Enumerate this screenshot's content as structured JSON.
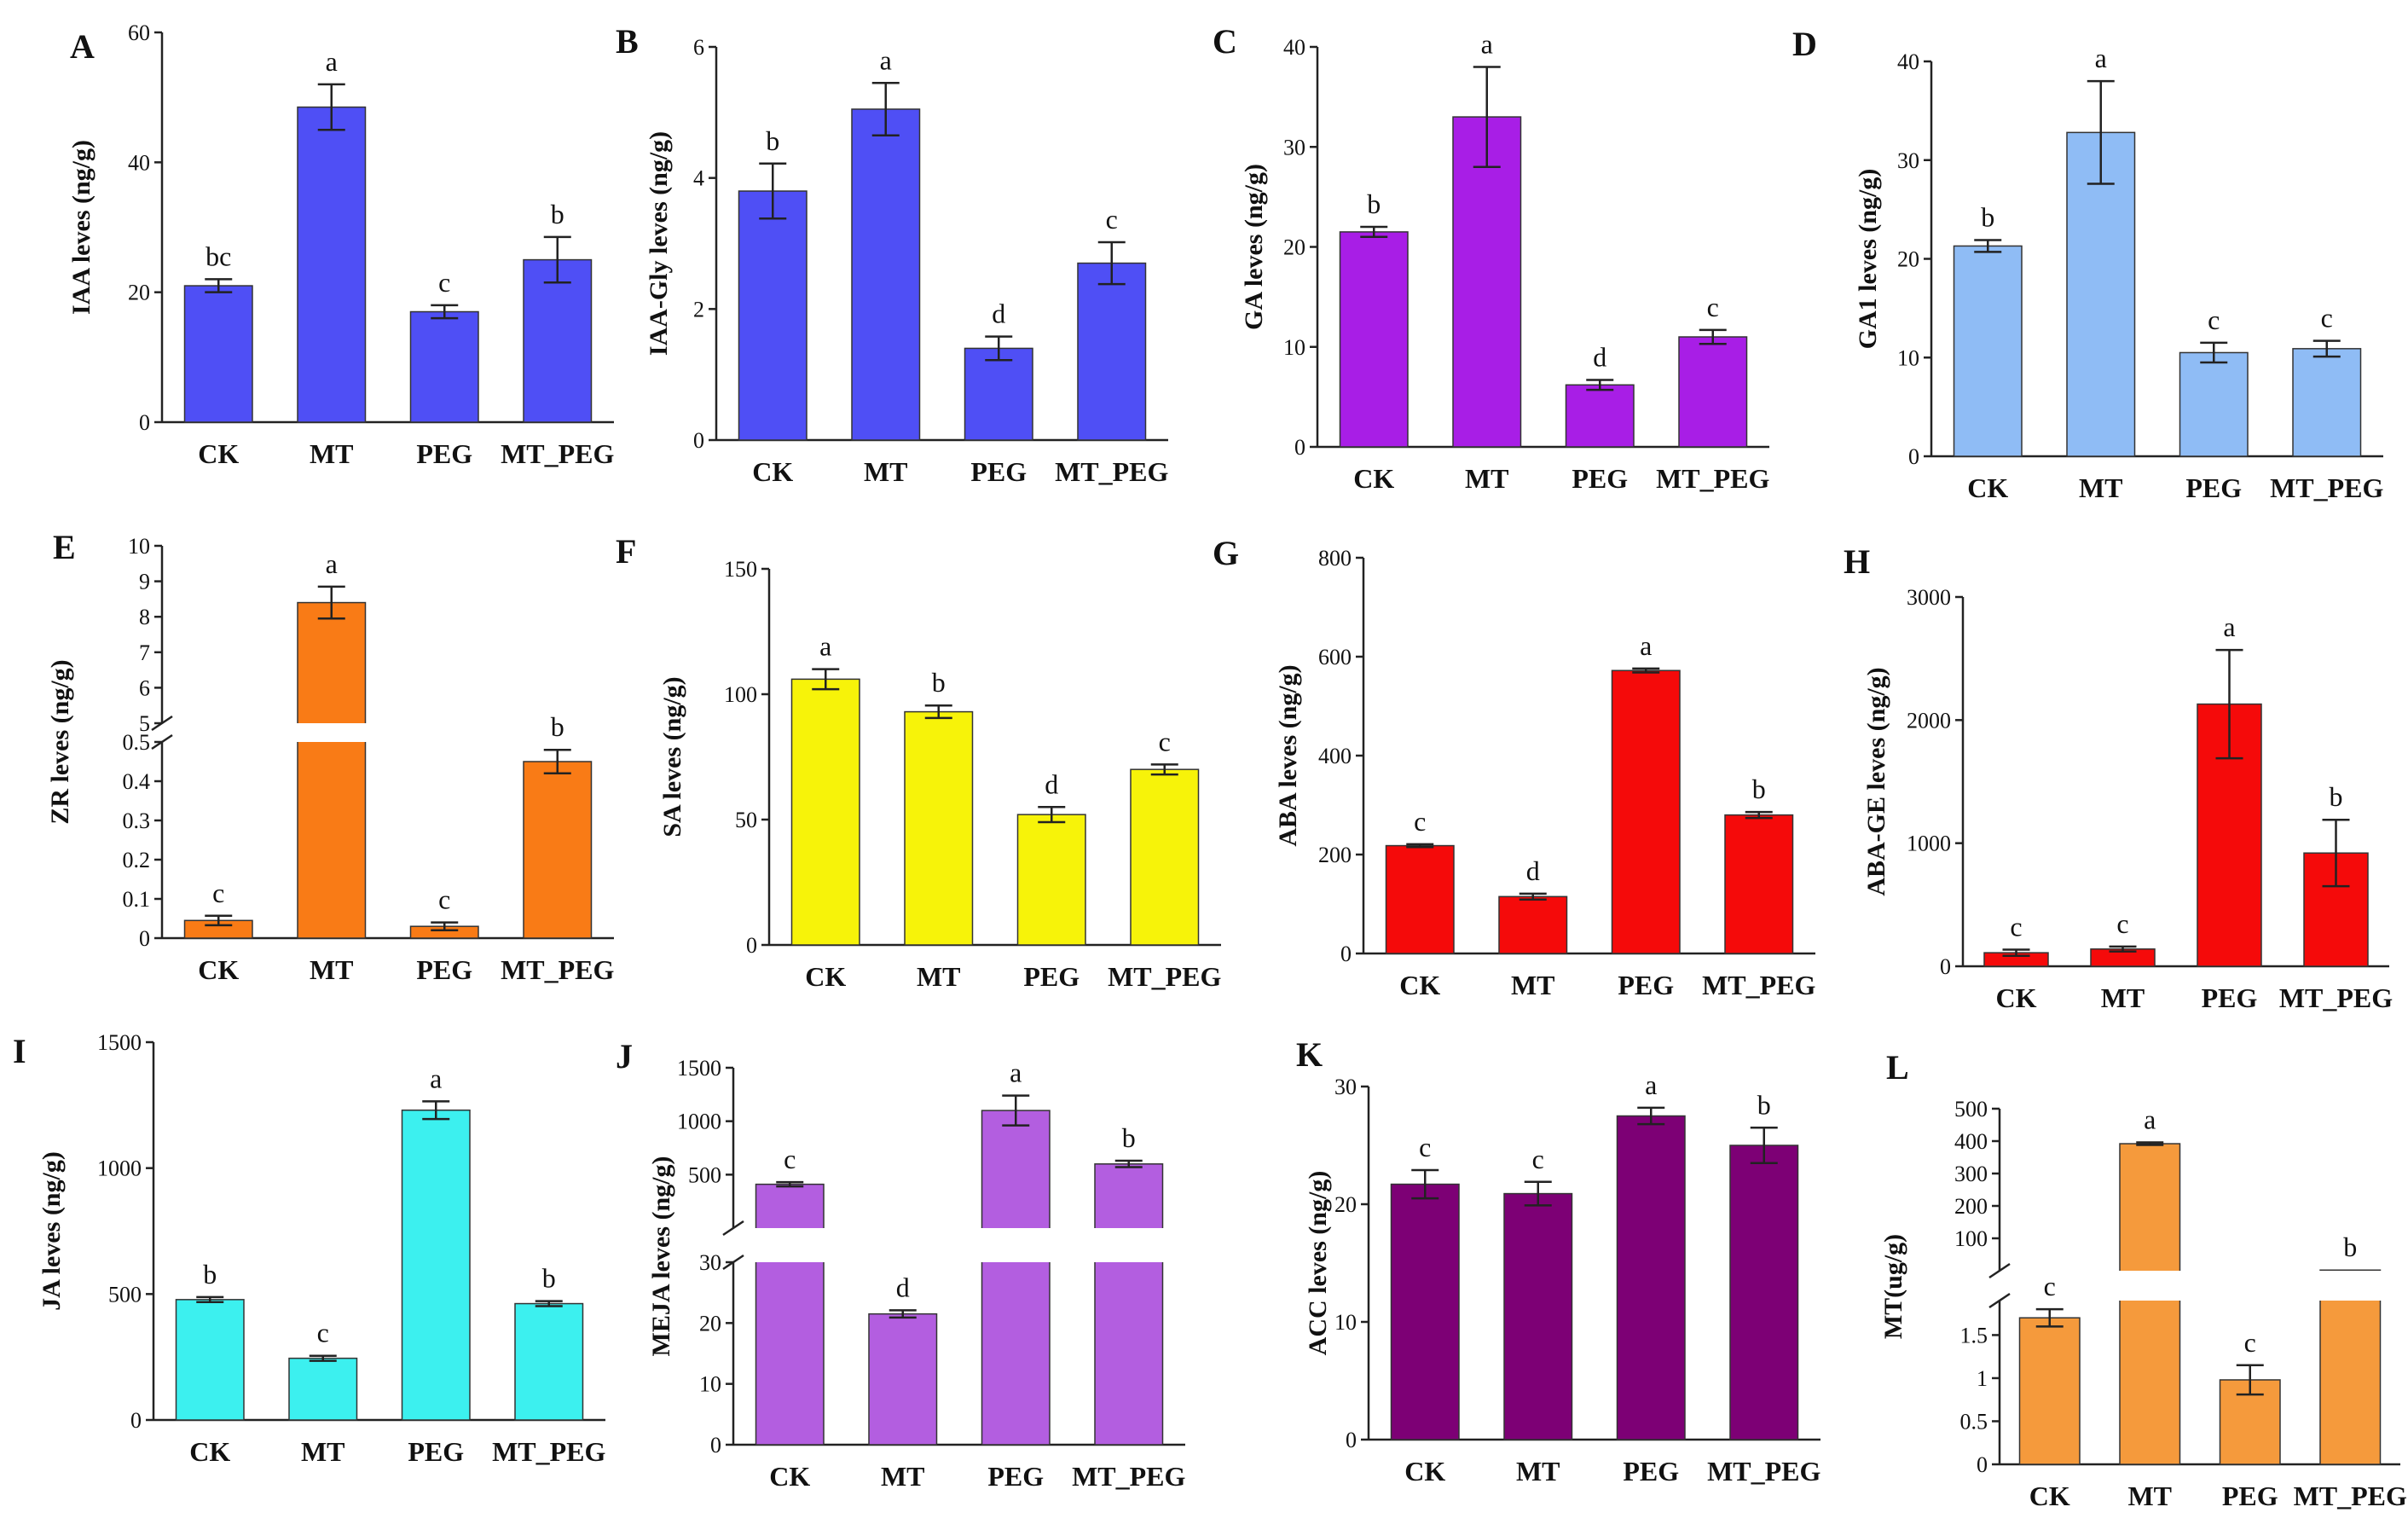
{
  "figure": {
    "categories": [
      "CK",
      "MT",
      "PEG",
      "MT_PEG"
    ]
  },
  "chart_data": [
    {
      "panel": "A",
      "type": "bar",
      "ylabel": "IAA leves (ng/g)",
      "categories": [
        "CK",
        "MT",
        "PEG",
        "MT_PEG"
      ],
      "values": [
        21,
        48.5,
        17,
        25
      ],
      "errors": [
        1,
        3.5,
        1,
        3.5
      ],
      "letters": [
        "bc",
        "a",
        "c",
        "b"
      ],
      "ylim": [
        0,
        60
      ],
      "yticks": [
        0,
        20,
        40,
        60
      ],
      "color": "#4f4ff5"
    },
    {
      "panel": "B",
      "type": "bar",
      "ylabel": "IAA-Gly leves (ng/g)",
      "categories": [
        "CK",
        "MT",
        "PEG",
        "MT_PEG"
      ],
      "values": [
        3.8,
        5.05,
        1.4,
        2.7
      ],
      "errors": [
        0.42,
        0.4,
        0.18,
        0.32
      ],
      "letters": [
        "b",
        "a",
        "d",
        "c"
      ],
      "ylim": [
        0,
        6
      ],
      "yticks": [
        0,
        2,
        4,
        6
      ],
      "color": "#4f4ff5"
    },
    {
      "panel": "C",
      "type": "bar",
      "ylabel": "GA leves (ng/g)",
      "categories": [
        "CK",
        "MT",
        "PEG",
        "MT_PEG"
      ],
      "values": [
        21.5,
        33,
        6.2,
        11
      ],
      "errors": [
        0.5,
        5,
        0.5,
        0.7
      ],
      "letters": [
        "b",
        "a",
        "d",
        "c"
      ],
      "ylim": [
        0,
        40
      ],
      "yticks": [
        0,
        10,
        20,
        30,
        40
      ],
      "color": "#a81ee6"
    },
    {
      "panel": "D",
      "type": "bar",
      "ylabel": "GA1 leves (ng/g)",
      "categories": [
        "CK",
        "MT",
        "PEG",
        "MT_PEG"
      ],
      "values": [
        21.3,
        32.8,
        10.5,
        10.9
      ],
      "errors": [
        0.6,
        5.2,
        1,
        0.8
      ],
      "letters": [
        "b",
        "a",
        "c",
        "c"
      ],
      "ylim": [
        0,
        40
      ],
      "yticks": [
        0,
        10,
        20,
        30,
        40
      ],
      "color": "#8fbcf5"
    },
    {
      "panel": "E",
      "type": "bar",
      "ylabel": "ZR leves (ng/g)",
      "categories": [
        "CK",
        "MT",
        "PEG",
        "MT_PEG"
      ],
      "values": [
        0.045,
        8.4,
        0.03,
        0.45
      ],
      "errors": [
        0.012,
        0.45,
        0.01,
        0.03
      ],
      "letters": [
        "c",
        "a",
        "c",
        "b"
      ],
      "broken": true,
      "segments": [
        {
          "min": 0,
          "max": 0.5,
          "ticks": [
            0,
            0.1,
            0.2,
            0.3,
            0.4,
            0.5
          ]
        },
        {
          "min": 5,
          "max": 10,
          "ticks": [
            5,
            6,
            7,
            8,
            9,
            10
          ]
        }
      ],
      "color": "#f97b16"
    },
    {
      "panel": "F",
      "type": "bar",
      "ylabel": "SA leves (ng/g)",
      "categories": [
        "CK",
        "MT",
        "PEG",
        "MT_PEG"
      ],
      "values": [
        106,
        93,
        52,
        70
      ],
      "errors": [
        4,
        2.5,
        3,
        2
      ],
      "letters": [
        "a",
        "b",
        "d",
        "c"
      ],
      "ylim": [
        0,
        150
      ],
      "yticks": [
        0,
        50,
        100,
        150
      ],
      "color": "#f7f309"
    },
    {
      "panel": "G",
      "type": "bar",
      "ylabel": "ABA leves (ng/g)",
      "categories": [
        "CK",
        "MT",
        "PEG",
        "MT_PEG"
      ],
      "values": [
        218,
        115,
        572,
        280
      ],
      "errors": [
        3,
        6,
        4,
        6
      ],
      "letters": [
        "c",
        "d",
        "a",
        "b"
      ],
      "ylim": [
        0,
        800
      ],
      "yticks": [
        0,
        200,
        400,
        600,
        800
      ],
      "color": "#f50a0a"
    },
    {
      "panel": "H",
      "type": "bar",
      "ylabel": "ABA-GE  leves (ng/g)",
      "categories": [
        "CK",
        "MT",
        "PEG",
        "MT_PEG"
      ],
      "values": [
        110,
        140,
        2130,
        920
      ],
      "errors": [
        25,
        20,
        440,
        270
      ],
      "letters": [
        "c",
        "c",
        "a",
        "b"
      ],
      "ylim": [
        0,
        3000
      ],
      "yticks": [
        0,
        1000,
        2000,
        3000
      ],
      "color": "#f50a0a"
    },
    {
      "panel": "I",
      "type": "bar",
      "ylabel": "JA leves (ng/g)",
      "categories": [
        "CK",
        "MT",
        "PEG",
        "MT_PEG"
      ],
      "values": [
        478,
        245,
        1230,
        462
      ],
      "errors": [
        10,
        10,
        35,
        10
      ],
      "letters": [
        "b",
        "c",
        "a",
        "b"
      ],
      "ylim": [
        0,
        1500
      ],
      "yticks": [
        0,
        500,
        1000,
        1500
      ],
      "color": "#3cf0ef"
    },
    {
      "panel": "J",
      "type": "bar",
      "ylabel": "MEJA leves (ng/g)",
      "categories": [
        "CK",
        "MT",
        "PEG",
        "MT_PEG"
      ],
      "values": [
        410,
        21.5,
        1100,
        600
      ],
      "errors": [
        20,
        0.6,
        140,
        30
      ],
      "letters": [
        "c",
        "d",
        "a",
        "b"
      ],
      "broken": true,
      "segments": [
        {
          "min": 0,
          "max": 30,
          "ticks": [
            0,
            10,
            20,
            30
          ]
        },
        {
          "min": 0,
          "max": 1500,
          "ticks": [
            500,
            1000,
            1500
          ]
        }
      ],
      "color": "#b35ee0"
    },
    {
      "panel": "K",
      "type": "bar",
      "ylabel": "ACC leves (ng/g)",
      "categories": [
        "CK",
        "MT",
        "PEG",
        "MT_PEG"
      ],
      "values": [
        21.7,
        20.9,
        27.5,
        25
      ],
      "errors": [
        1.2,
        1,
        0.7,
        1.5
      ],
      "letters": [
        "c",
        "c",
        "a",
        "b"
      ],
      "ylim": [
        0,
        30
      ],
      "yticks": [
        0,
        10,
        20,
        30
      ],
      "color": "#7d0075"
    },
    {
      "panel": "L",
      "type": "bar",
      "ylabel": "MT(ug/g)",
      "categories": [
        "CK",
        "MT",
        "PEG",
        "MT_PEG"
      ],
      "values": [
        1.7,
        392,
        0.98,
        2
      ],
      "errors": [
        0.1,
        4,
        0.17,
        0
      ],
      "letters": [
        "c",
        "a",
        "c",
        "b"
      ],
      "broken": true,
      "segments": [
        {
          "min": 0,
          "max": 1.9,
          "ticks": [
            0.0,
            0.5,
            1.0,
            1.5
          ]
        },
        {
          "min": 0,
          "max": 500,
          "ticks": [
            100,
            200,
            300,
            400,
            500
          ]
        }
      ],
      "color": "#f59a3c"
    }
  ]
}
